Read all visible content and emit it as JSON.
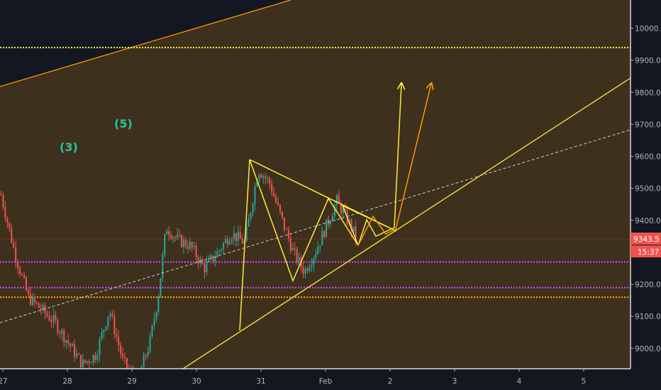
{
  "chart_data": {
    "type": "candlestick",
    "y_ticks": [
      9000,
      9100,
      9200,
      9300,
      9400,
      9500,
      9600,
      9700,
      9800,
      9900,
      10000
    ],
    "y_tick_labels": [
      "9000.0",
      "9100.0",
      "9200.0",
      "9300.0",
      "9400.0",
      "9500.0",
      "9600.0",
      "9700.0",
      "9800.0",
      "9900.0",
      "10000.0"
    ],
    "x_ticks": [
      {
        "day": 27,
        "label": "27"
      },
      {
        "day": 28,
        "label": "28"
      },
      {
        "day": 29,
        "label": "29"
      },
      {
        "day": 30,
        "label": "30"
      },
      {
        "day": 31,
        "label": "31"
      },
      {
        "day": 32,
        "label": "Feb"
      },
      {
        "day": 33,
        "label": "2"
      },
      {
        "day": 34,
        "label": "3"
      },
      {
        "day": 35,
        "label": "4"
      },
      {
        "day": 36,
        "label": "5"
      }
    ],
    "last_price": {
      "value": 9343.5,
      "label": "9343.5",
      "countdown": "15:37"
    },
    "horizontal_levels": [
      {
        "value": 9940,
        "color": "#ffeb3b",
        "style": "dotted"
      },
      {
        "value": 9270,
        "color": "#e040fb",
        "style": "dotted"
      },
      {
        "value": 9190,
        "color": "#e040fb",
        "style": "dotted"
      },
      {
        "value": 9160,
        "color": "#ff9800",
        "style": "dotted"
      }
    ],
    "wave_labels": [
      {
        "text": "(3)",
        "day": 28.0,
        "price": 9720
      },
      {
        "text": "(5)",
        "day": 27.85,
        "price": 9760
      }
    ],
    "colors": {
      "background": "#131722",
      "band": "#3d301c",
      "up": "#26a69a",
      "down": "#ef5350",
      "projection": "#ffeb3b",
      "projection_alt": "#ff9800"
    }
  }
}
